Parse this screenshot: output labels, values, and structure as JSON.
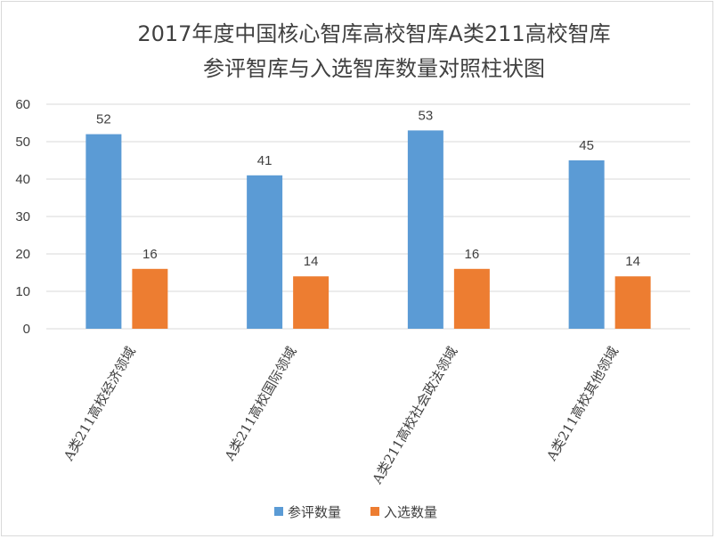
{
  "chart_data": {
    "type": "bar",
    "title_lines": [
      "2017年度中国核心智库高校智库A类211高校智库",
      "参评智库与入选智库数量对照柱状图"
    ],
    "categories": [
      "A类211高校经济领域",
      "A类211高校国际领域",
      "A类211高校社会政法领域",
      "A类211高校其他领域"
    ],
    "series": [
      {
        "name": "参评数量",
        "color": "#5b9bd5",
        "values": [
          52,
          41,
          53,
          45
        ]
      },
      {
        "name": "入选数量",
        "color": "#ed7d31",
        "values": [
          16,
          14,
          16,
          14
        ]
      }
    ],
    "ylim": [
      0,
      60
    ],
    "yticks": [
      0,
      10,
      20,
      30,
      40,
      50,
      60
    ],
    "grid": true,
    "legend_position": "bottom"
  }
}
